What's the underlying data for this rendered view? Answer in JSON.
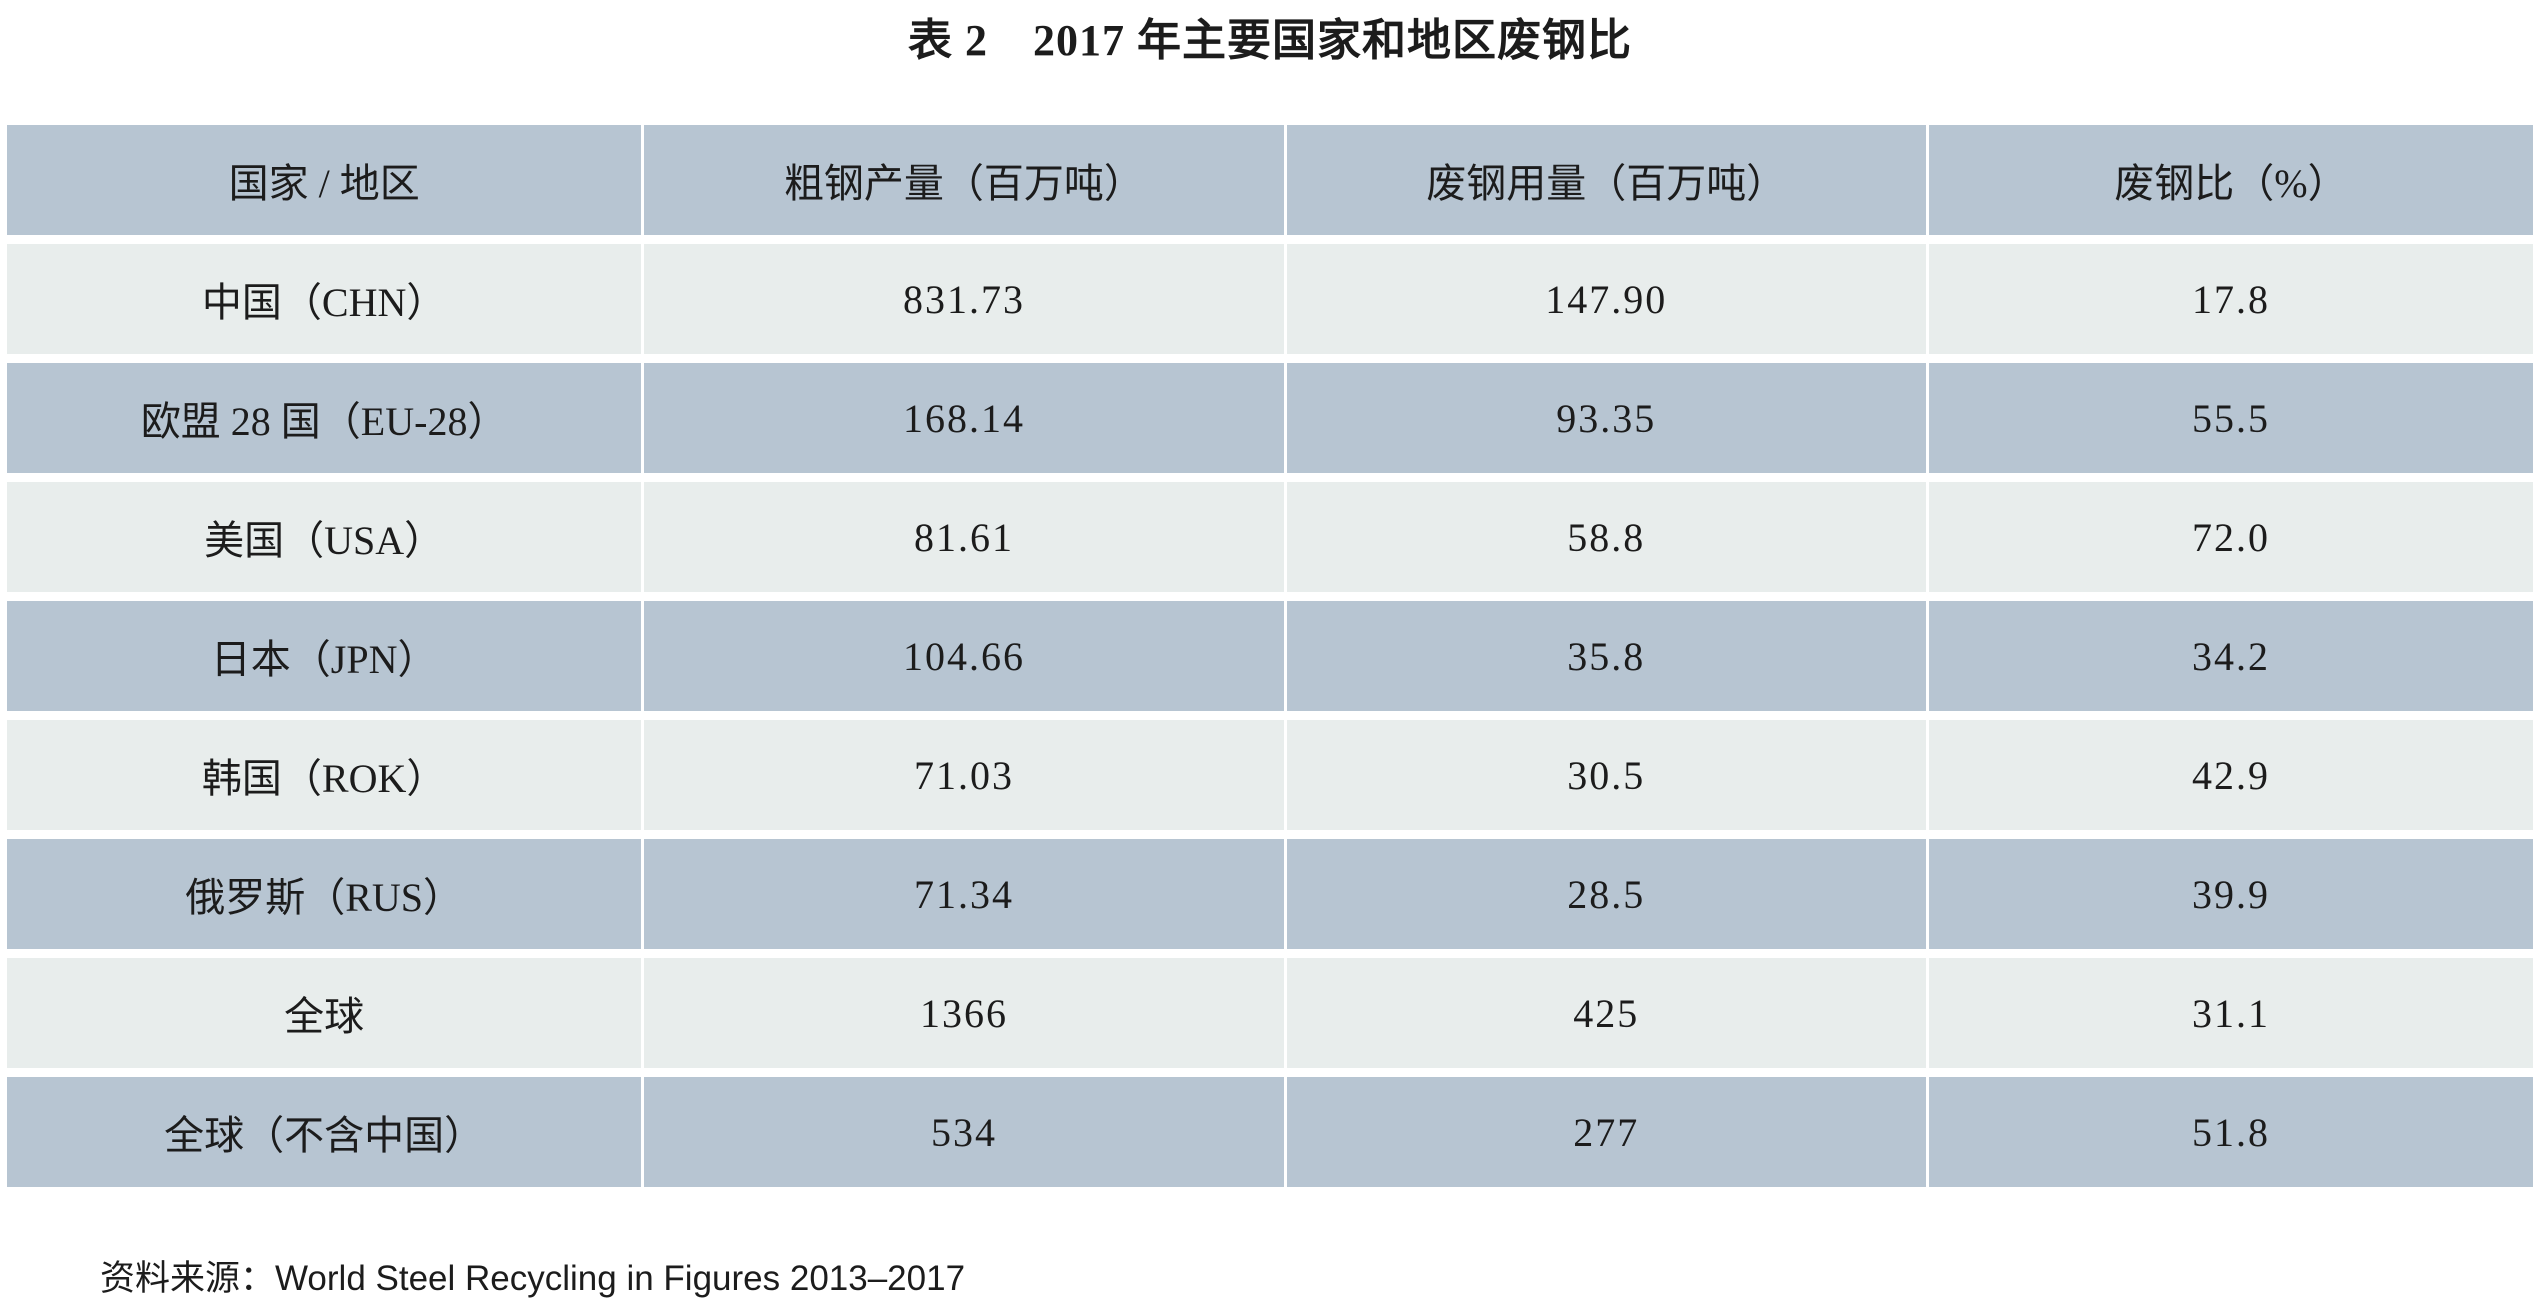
{
  "title": "表 2　2017 年主要国家和地区废钢比",
  "table": {
    "columns": [
      "国家 / 地区",
      "粗钢产量（百万吨）",
      "废钢用量（百万吨）",
      "废钢比（%）"
    ],
    "rows": [
      {
        "region": "中国（CHN）",
        "production": "831.73",
        "scrap_use": "147.90",
        "ratio": "17.8"
      },
      {
        "region": "欧盟 28 国（EU-28）",
        "production": "168.14",
        "scrap_use": "93.35",
        "ratio": "55.5"
      },
      {
        "region": "美国（USA）",
        "production": "81.61",
        "scrap_use": "58.8",
        "ratio": "72.0"
      },
      {
        "region": "日本（JPN）",
        "production": "104.66",
        "scrap_use": "35.8",
        "ratio": "34.2"
      },
      {
        "region": "韩国（ROK）",
        "production": "71.03",
        "scrap_use": "30.5",
        "ratio": "42.9"
      },
      {
        "region": "俄罗斯（RUS）",
        "production": "71.34",
        "scrap_use": "28.5",
        "ratio": "39.9"
      },
      {
        "region": "全球",
        "production": "1366",
        "scrap_use": "425",
        "ratio": "31.1"
      },
      {
        "region": "全球（不含中国）",
        "production": "534",
        "scrap_use": "277",
        "ratio": "51.8"
      }
    ]
  },
  "source": {
    "label": "资料来源：",
    "text": "World Steel Recycling in Figures 2013–2017"
  },
  "colors": {
    "row_dark": "#b7c5d2",
    "row_light": "#e8edec",
    "text": "#1c1c1c",
    "background": "#ffffff"
  }
}
